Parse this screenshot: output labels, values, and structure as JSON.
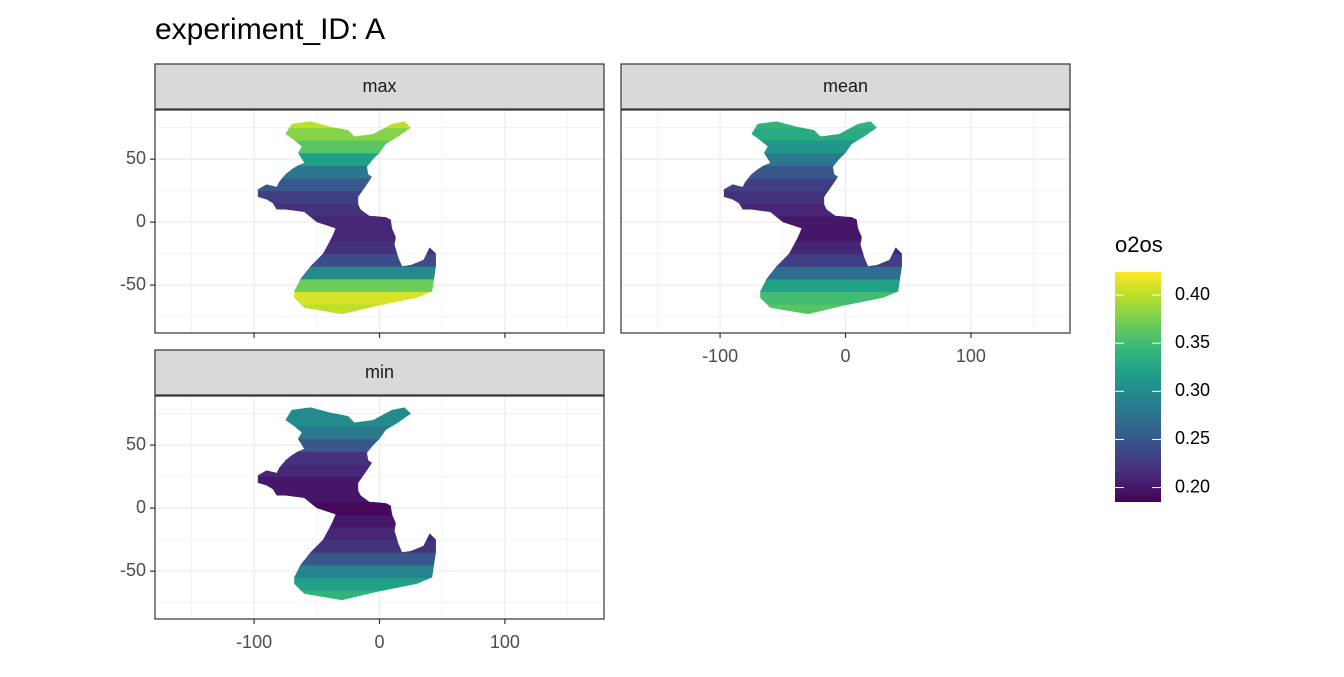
{
  "chart_data": {
    "type": "raster",
    "title": "experiment_ID: A",
    "legend_title": "o2os",
    "y": [
      -70,
      -60,
      -50,
      -40,
      -30,
      -20,
      -10,
      0,
      10,
      20,
      30,
      40,
      50,
      60,
      70,
      80
    ],
    "facets": [
      {
        "name": "max",
        "values": [
          0.4,
          0.41,
          0.37,
          0.3,
          0.24,
          0.22,
          0.21,
          0.21,
          0.22,
          0.23,
          0.25,
          0.28,
          0.32,
          0.36,
          0.38,
          0.4
        ]
      },
      {
        "name": "mean",
        "values": [
          0.36,
          0.35,
          0.32,
          0.27,
          0.23,
          0.21,
          0.2,
          0.2,
          0.21,
          0.22,
          0.23,
          0.25,
          0.28,
          0.31,
          0.33,
          0.34
        ]
      },
      {
        "name": "min",
        "values": [
          0.34,
          0.32,
          0.29,
          0.25,
          0.22,
          0.21,
          0.2,
          0.19,
          0.2,
          0.2,
          0.21,
          0.22,
          0.25,
          0.28,
          0.3,
          0.3
        ]
      }
    ],
    "xlim": [
      -179,
      179
    ],
    "ylim": [
      -88,
      89
    ],
    "xticks": [
      -100,
      0,
      100
    ],
    "yticks": [
      -50,
      0,
      50
    ],
    "x_minor_ticks": [
      -150,
      -50,
      50,
      150
    ],
    "y_minor_ticks": [
      -75,
      -25,
      25,
      75
    ],
    "color_lim": [
      0.185,
      0.424
    ],
    "color_ticks": [
      {
        "value": 0.2,
        "label": "0.20"
      },
      {
        "value": 0.25,
        "label": "0.25"
      },
      {
        "value": 0.3,
        "label": "0.30"
      },
      {
        "value": 0.35,
        "label": "0.35"
      },
      {
        "value": 0.4,
        "label": "0.40"
      }
    ],
    "colorscale": [
      "#440154",
      "#482878",
      "#3e4989",
      "#31688e",
      "#26828e",
      "#1f9e89",
      "#35b779",
      "#6ece58",
      "#b5de2b",
      "#fde725"
    ],
    "grid": true
  }
}
